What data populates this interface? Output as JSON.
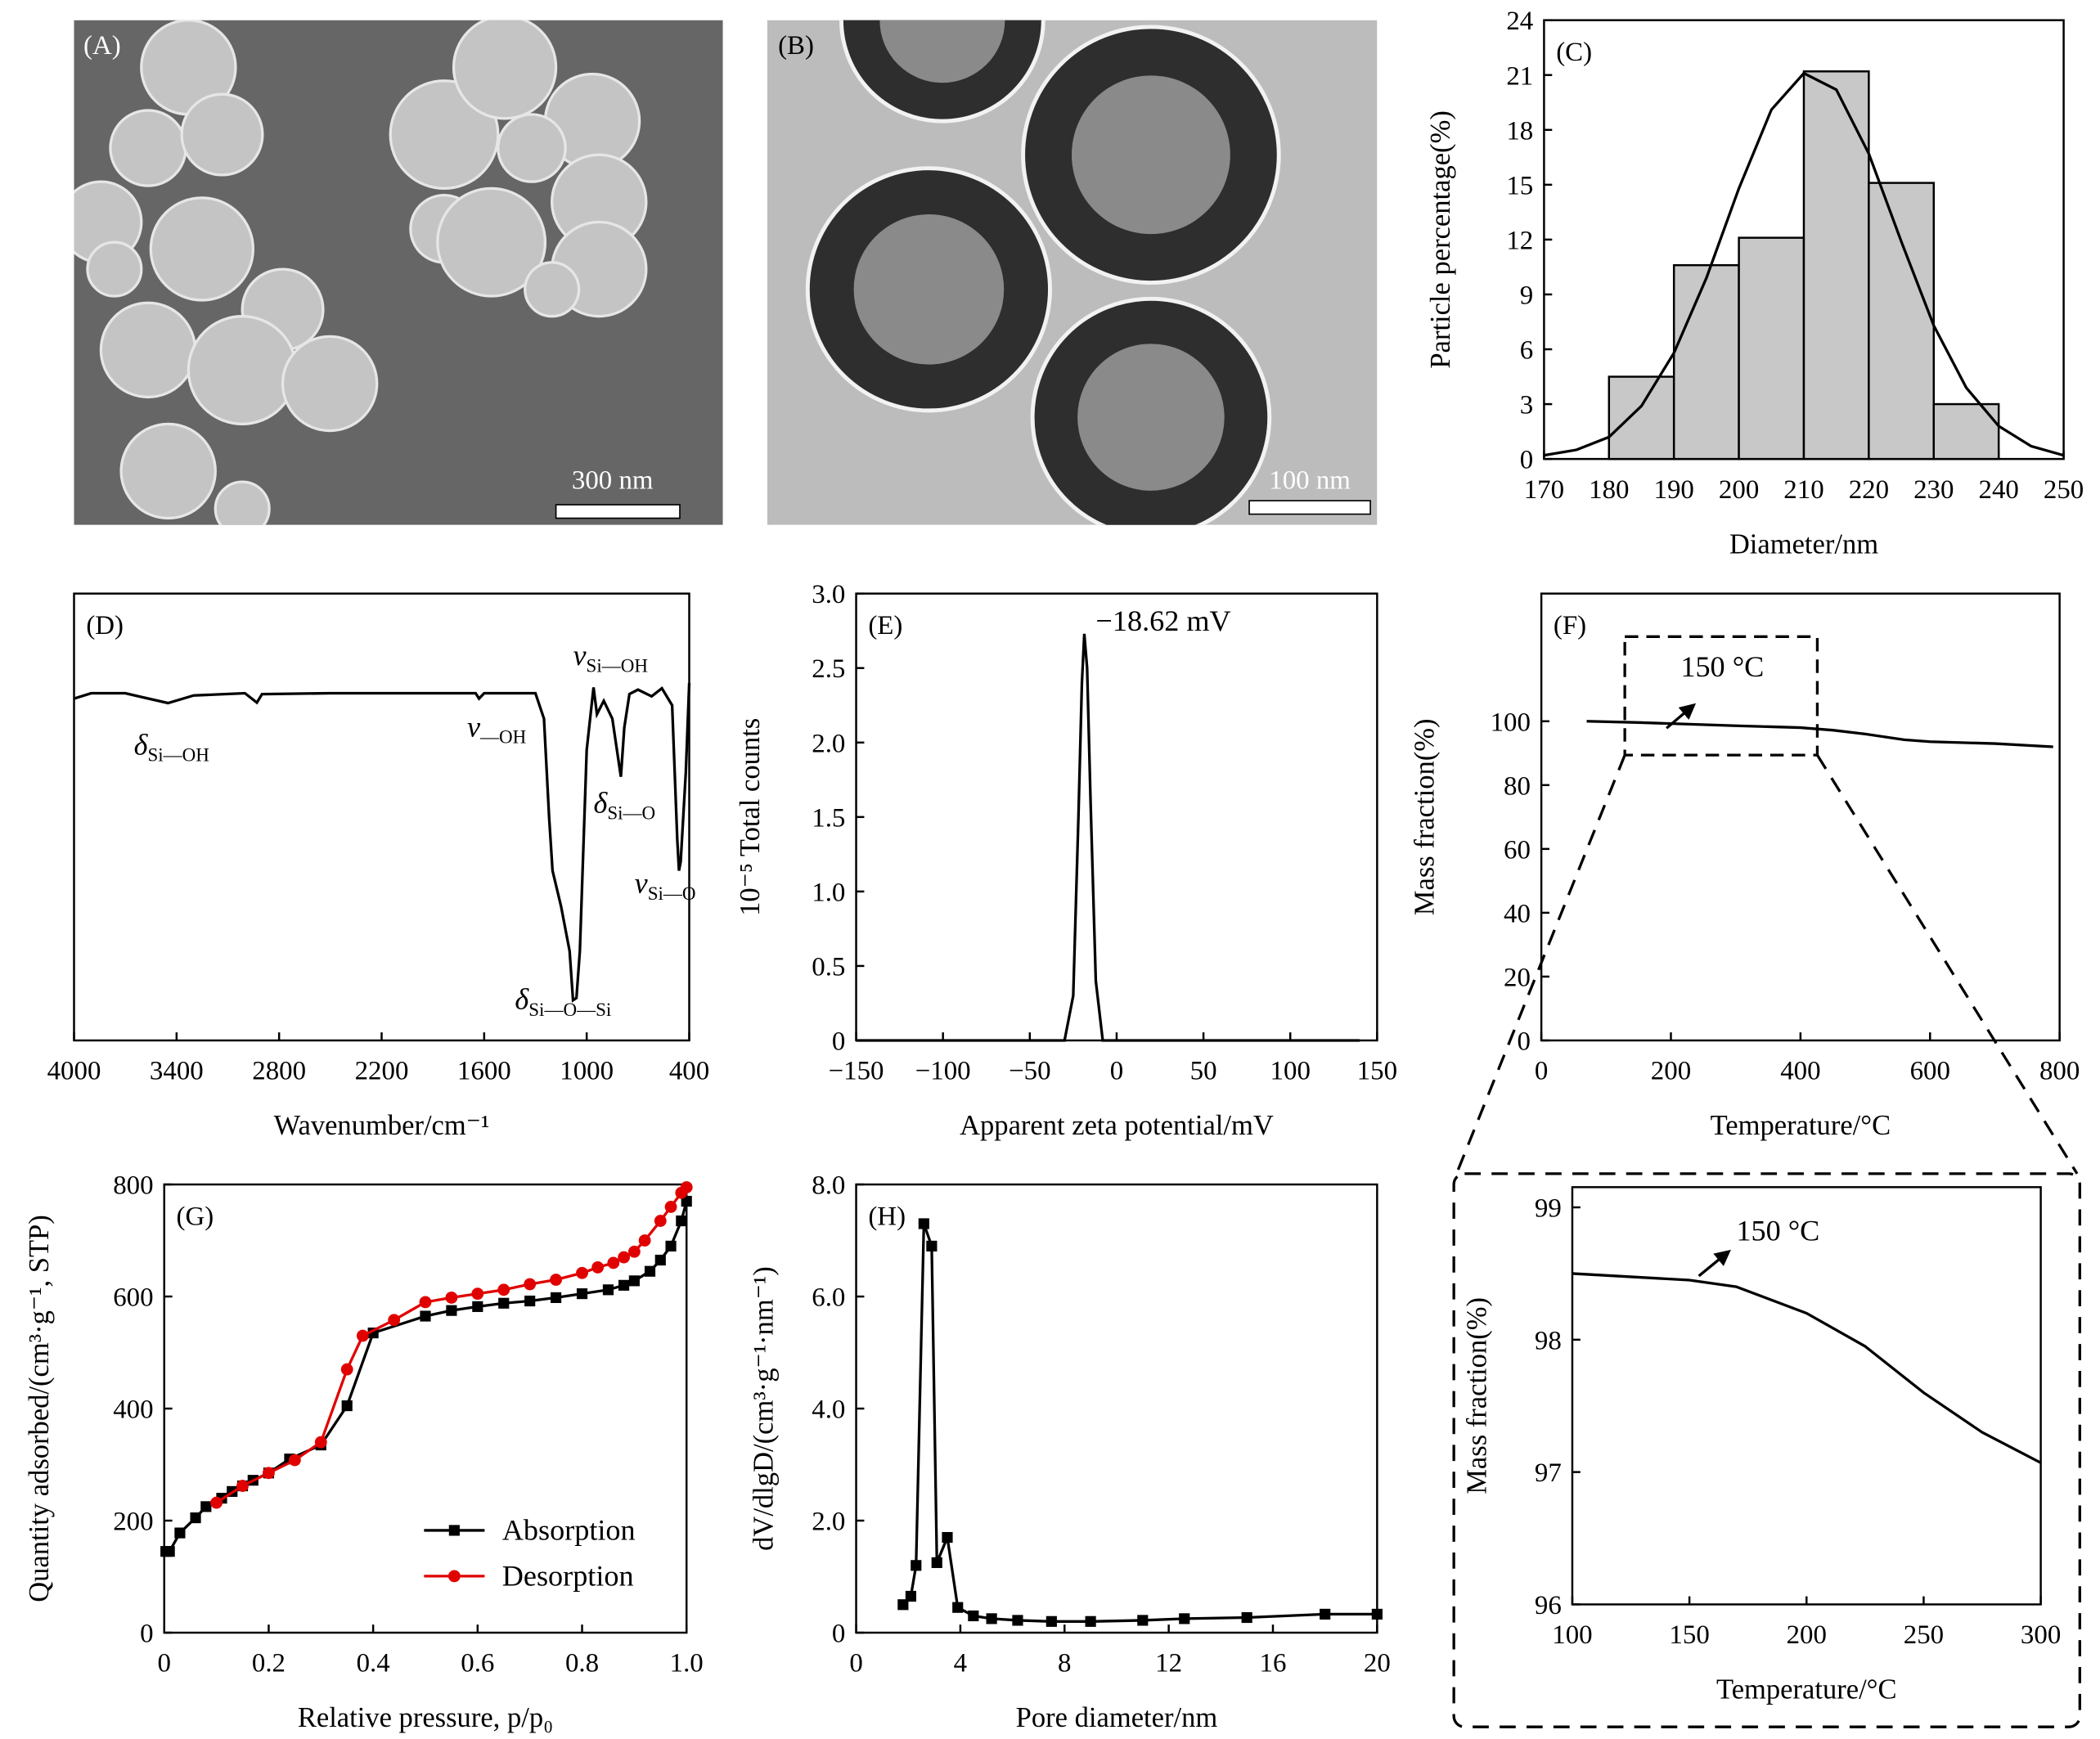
{
  "images": [
    {
      "label": "(A)",
      "scale_bar": "300 nm"
    },
    {
      "label": "(B)",
      "scale_bar": "100 nm"
    }
  ],
  "chart_data": [
    {
      "type": "histogram",
      "panel": "(C)",
      "xlabel": "Diameter/nm",
      "ylabel": "Particle percentage(%)",
      "bins": [
        180,
        190,
        200,
        210,
        220,
        230,
        240
      ],
      "counts": [
        4.5,
        10.6,
        12.1,
        21.2,
        15.1,
        3.0
      ],
      "color": "#c8c8c8",
      "series": [
        {
          "color": "#000000",
          "x": [
            170,
            175,
            180,
            185,
            190,
            195,
            200,
            205,
            210,
            215,
            220,
            225,
            230,
            235,
            240,
            245,
            250
          ],
          "values": [
            0.2,
            0.5,
            1.2,
            2.9,
            5.8,
            9.9,
            14.8,
            19.1,
            21.1,
            20.2,
            16.7,
            11.9,
            7.3,
            3.9,
            1.8,
            0.7,
            0.2
          ]
        }
      ],
      "xlim": [
        170,
        250
      ],
      "xticks": [
        170,
        180,
        190,
        200,
        210,
        220,
        230,
        240,
        250
      ],
      "ylim": [
        0,
        24
      ],
      "yticks": [
        0,
        3,
        6,
        9,
        12,
        15,
        18,
        21,
        24
      ]
    },
    {
      "type": "line",
      "panel": "(D)",
      "xlabel": "Wavenumber/cm⁻¹",
      "series": [
        {
          "color": "#000000",
          "x": [
            4000,
            3900,
            3700,
            3600,
            3450,
            3300,
            3000,
            2930,
            2900,
            2500,
            1650,
            1630,
            1600,
            1300,
            1250,
            1220,
            1200,
            1150,
            1100,
            1080,
            1060,
            1040,
            1000,
            960,
            940,
            900,
            850,
            800,
            780,
            750,
            700,
            620,
            560,
            500,
            470,
            460,
            450,
            420,
            400
          ],
          "values": [
            76.5,
            77.7,
            77.7,
            76.8,
            75.5,
            77.2,
            77.7,
            75.6,
            77.5,
            77.7,
            77.7,
            76.5,
            77.7,
            77.7,
            72,
            50,
            38,
            30,
            20,
            9,
            9.5,
            20,
            65,
            79,
            73,
            76,
            72,
            59,
            70,
            77.5,
            78.5,
            77,
            78.8,
            75,
            45,
            38,
            40,
            60,
            80
          ]
        }
      ],
      "annotations": [
        {
          "symbol": "δ",
          "sub": "Si—OH",
          "x": 3650,
          "y": 64
        },
        {
          "symbol": "ν",
          "sub": "—OH",
          "x": 1700,
          "y": 68
        },
        {
          "symbol": "ν",
          "sub": "Si—OH",
          "x": 1080,
          "y": 84
        },
        {
          "symbol": "δ",
          "sub": "Si—O",
          "x": 960,
          "y": 51
        },
        {
          "symbol": "ν",
          "sub": "Si—O",
          "x": 720,
          "y": 33
        },
        {
          "symbol": "δ",
          "sub": "Si—O—Si",
          "x": 1420,
          "y": 7
        }
      ],
      "xlim": [
        4000,
        400
      ],
      "xticks": [
        4000,
        3400,
        2800,
        2200,
        1600,
        1000,
        400
      ],
      "ylim": [
        0,
        100
      ]
    },
    {
      "type": "line",
      "panel": "(E)",
      "xlabel": "Apparent zeta potential/mV",
      "ylabel": "10⁻⁵ Total counts",
      "series": [
        {
          "color": "#000000",
          "x": [
            -150,
            -30,
            -25,
            -22,
            -20,
            -18.62,
            -17,
            -15,
            -12,
            -8,
            140
          ],
          "values": [
            0,
            0,
            0.3,
            1.5,
            2.4,
            2.73,
            2.5,
            1.6,
            0.4,
            0,
            0
          ]
        }
      ],
      "annotations": [
        {
          "text": "−18.62 mV",
          "x": -12,
          "y": 2.75
        }
      ],
      "xlim": [
        -150,
        150
      ],
      "xticks": [
        {
          "value": -150,
          "label": "−150"
        },
        {
          "value": -100,
          "label": "−100"
        },
        {
          "value": -50,
          "label": "−50"
        },
        0,
        50,
        100,
        150
      ],
      "ylim": [
        0,
        3
      ],
      "yticks": [
        0,
        0.5,
        {
          "value": 1,
          "label": "1.0"
        },
        1.5,
        {
          "value": 2,
          "label": "2.0"
        },
        2.5,
        {
          "value": 3,
          "label": "3.0"
        }
      ]
    },
    {
      "type": "line",
      "panel": "(F)",
      "xlabel": "Temperature/°C",
      "ylabel": "Mass fraction(%)",
      "series": [
        {
          "color": "#000000",
          "x": [
            70,
            150,
            300,
            400,
            450,
            500,
            560,
            600,
            700,
            790
          ],
          "values": [
            100,
            99.6,
            98.6,
            98,
            97.2,
            96,
            94.2,
            93.6,
            93,
            92
          ]
        }
      ],
      "annotations": [
        {
          "text": "150 °C",
          "x": 215,
          "y": 114
        }
      ],
      "xlim": [
        0,
        800
      ],
      "xticks": [
        0,
        200,
        400,
        600,
        800
      ],
      "ylim": [
        0,
        140
      ],
      "yticks": [
        0,
        20,
        40,
        60,
        80,
        100
      ]
    },
    {
      "type": "line",
      "xlabel": "Temperature/°C",
      "ylabel": "Mass fraction(%)",
      "series": [
        {
          "color": "#000000",
          "x": [
            100,
            150,
            170,
            200,
            225,
            250,
            275,
            300
          ],
          "values": [
            98.5,
            98.45,
            98.4,
            98.2,
            97.95,
            97.6,
            97.3,
            97.07
          ]
        }
      ],
      "annotations": [
        {
          "text": "150 °C",
          "x": 170,
          "y": 98.75
        }
      ],
      "xlim": [
        100,
        300
      ],
      "xticks": [
        100,
        150,
        200,
        250,
        300
      ],
      "ylim": [
        96,
        99
      ],
      "yticks": [
        96,
        97,
        98,
        99
      ]
    },
    {
      "type": "line",
      "panel": "(G)",
      "xlabel": "Relative pressure, p/p₀",
      "ylabel": "Quantity adsorbed/(cm³·g⁻¹, STP)",
      "legend": "lower right",
      "series": [
        {
          "name": "Absorption",
          "color": "#000000",
          "marker": "square",
          "x": [
            0.003,
            0.01,
            0.03,
            0.06,
            0.08,
            0.11,
            0.13,
            0.15,
            0.17,
            0.2,
            0.24,
            0.3,
            0.35,
            0.4,
            0.5,
            0.55,
            0.6,
            0.65,
            0.7,
            0.75,
            0.8,
            0.85,
            0.88,
            0.9,
            0.93,
            0.95,
            0.97,
            0.99,
            1.0
          ],
          "values": [
            145,
            145,
            178,
            205,
            225,
            240,
            252,
            262,
            272,
            285,
            310,
            335,
            405,
            535,
            565,
            575,
            582,
            588,
            592,
            598,
            605,
            612,
            620,
            628,
            645,
            665,
            690,
            735,
            770
          ]
        },
        {
          "name": "Desorption",
          "color": "#e00000",
          "marker": "circle",
          "x": [
            0.1,
            0.15,
            0.2,
            0.25,
            0.3,
            0.35,
            0.38,
            0.44,
            0.5,
            0.55,
            0.6,
            0.65,
            0.7,
            0.75,
            0.8,
            0.83,
            0.86,
            0.88,
            0.9,
            0.92,
            0.95,
            0.97,
            0.99,
            1.0
          ],
          "values": [
            232,
            262,
            285,
            308,
            340,
            470,
            530,
            558,
            590,
            598,
            605,
            612,
            622,
            630,
            642,
            652,
            660,
            670,
            680,
            700,
            735,
            760,
            785,
            795
          ]
        }
      ],
      "xlim": [
        0,
        1
      ],
      "xticks": [
        0,
        0.2,
        0.4,
        0.6,
        0.8,
        {
          "value": 1,
          "label": "1.0"
        }
      ],
      "ylim": [
        0,
        800
      ],
      "yticks": [
        0,
        200,
        400,
        600,
        800
      ]
    },
    {
      "type": "line",
      "panel": "(H)",
      "xlabel": "Pore diameter/nm",
      "ylabel": "dV/dlgD/(cm³·g⁻¹·nm⁻¹)",
      "series": [
        {
          "color": "#000000",
          "marker": "square",
          "x": [
            1.8,
            2.1,
            2.3,
            2.6,
            2.9,
            3.1,
            3.5,
            3.9,
            4.5,
            5.2,
            6.2,
            7.5,
            9,
            11,
            12.6,
            15,
            18,
            20
          ],
          "values": [
            0.5,
            0.65,
            1.2,
            7.3,
            6.9,
            1.25,
            1.7,
            0.45,
            0.3,
            0.25,
            0.22,
            0.2,
            0.2,
            0.22,
            0.25,
            0.27,
            0.33,
            0.33
          ]
        }
      ],
      "xlim": [
        0,
        20
      ],
      "xticks": [
        0,
        4,
        8,
        12,
        16,
        20
      ],
      "ylim": [
        0,
        8
      ],
      "yticks": [
        0,
        {
          "value": 2,
          "label": "2.0"
        },
        {
          "value": 4,
          "label": "4.0"
        },
        {
          "value": 6,
          "label": "6.0"
        },
        {
          "value": 8,
          "label": "8.0"
        }
      ]
    }
  ]
}
